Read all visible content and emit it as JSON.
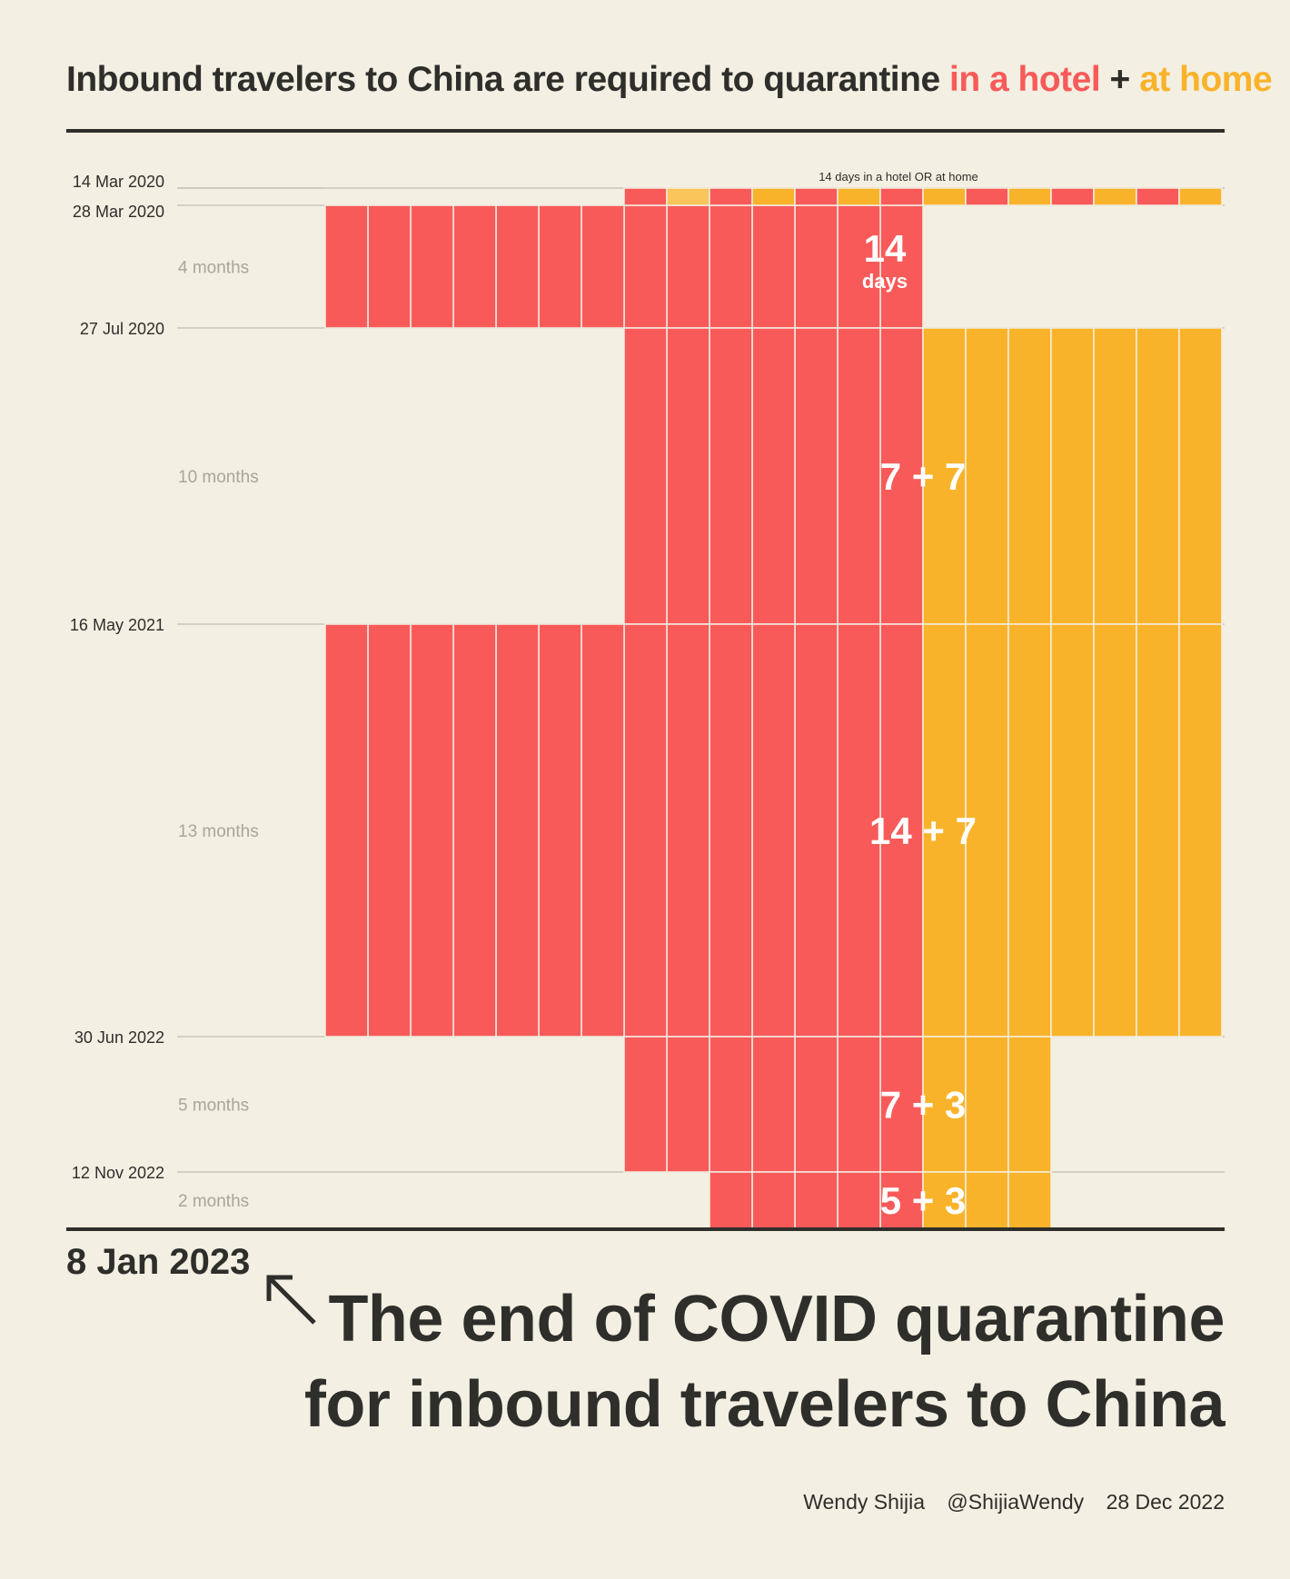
{
  "header": {
    "title_prefix": "Inbound travelers to China are required to quarantine ",
    "title_hotel": "in a hotel",
    "title_plus": " + ",
    "title_home": "at home"
  },
  "colors": {
    "hotel": "#f85a5a",
    "home": "#f9b32b",
    "either": "#fac55a",
    "background": "#f3efe2",
    "text": "#2e2e2b"
  },
  "chart_data": {
    "type": "bar",
    "orientation": "horizontal-timeline",
    "unit": "days",
    "max_days": 21,
    "periods": [
      {
        "start": "14 Mar 2020",
        "end": "28 Mar 2020",
        "duration_label": "",
        "hotel_days": 14,
        "home_days": 0,
        "note": "14 days in a hotel OR at home",
        "value_label_top": "",
        "value_label_bottom": ""
      },
      {
        "start": "28 Mar 2020",
        "end": "27 Jul 2020",
        "duration_label": "4 months",
        "hotel_days": 14,
        "home_days": 0,
        "value_label_top": "14",
        "value_label_bottom": "days"
      },
      {
        "start": "27 Jul 2020",
        "end": "16 May 2021",
        "duration_label": "10 months",
        "hotel_days": 7,
        "home_days": 7,
        "value_label_top": "7 + 7",
        "value_label_bottom": ""
      },
      {
        "start": "16 May 2021",
        "end": "30 Jun 2022",
        "duration_label": "13 months",
        "hotel_days": 14,
        "home_days": 7,
        "value_label_top": "14 + 7",
        "value_label_bottom": ""
      },
      {
        "start": "30 Jun 2022",
        "end": "12 Nov 2022",
        "duration_label": "5 months",
        "hotel_days": 7,
        "home_days": 3,
        "value_label_top": "7 + 3",
        "value_label_bottom": ""
      },
      {
        "start": "12 Nov 2022",
        "end": "8 Jan 2023",
        "duration_label": "2 months",
        "hotel_days": 5,
        "home_days": 3,
        "value_label_top": "5 + 3",
        "value_label_bottom": ""
      }
    ],
    "date_ticks": [
      "14 Mar 2020",
      "28 Mar 2020",
      "27 Jul 2020",
      "16 May 2021",
      "30 Jun 2022",
      "12 Nov 2022"
    ]
  },
  "footer": {
    "end_date": "8 Jan 2023",
    "headline_line1": "The end of COVID quarantine",
    "headline_line2": "for inbound travelers to China",
    "author": "Wendy Shijia",
    "handle": "@ShijiaWendy",
    "date": "28 Dec 2022"
  }
}
